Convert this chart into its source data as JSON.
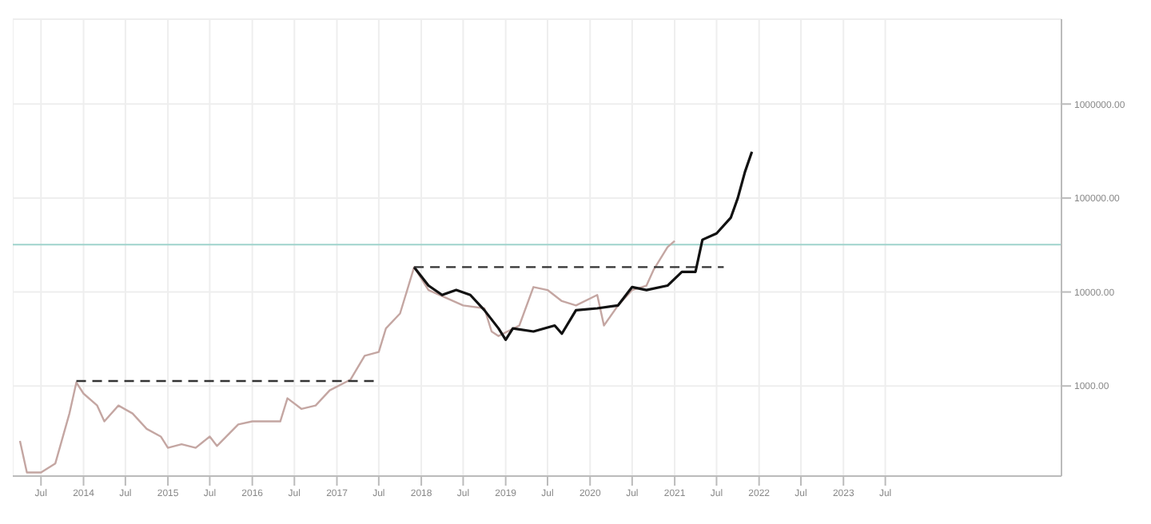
{
  "chart_data": {
    "type": "line",
    "log": true,
    "grid": true,
    "legend": false,
    "marker": "none",
    "xlim": [
      "2013-03",
      "2025-08"
    ],
    "xticks": [
      {
        "value": "2013-07",
        "label": "Jul"
      },
      {
        "value": "2014-01",
        "label": "2014"
      },
      {
        "value": "2014-07",
        "label": "Jul"
      },
      {
        "value": "2015-01",
        "label": "2015"
      },
      {
        "value": "2015-07",
        "label": "Jul"
      },
      {
        "value": "2016-01",
        "label": "2016"
      },
      {
        "value": "2016-07",
        "label": "Jul"
      },
      {
        "value": "2017-01",
        "label": "2017"
      },
      {
        "value": "2017-07",
        "label": "Jul"
      },
      {
        "value": "2018-01",
        "label": "2018"
      },
      {
        "value": "2018-07",
        "label": "Jul"
      },
      {
        "value": "2019-01",
        "label": "2019"
      },
      {
        "value": "2019-07",
        "label": "Jul"
      },
      {
        "value": "2020-01",
        "label": "2020"
      },
      {
        "value": "2020-07",
        "label": "Jul"
      },
      {
        "value": "2021-01",
        "label": "2021"
      },
      {
        "value": "2021-07",
        "label": "Jul"
      },
      {
        "value": "2022-01",
        "label": "2022"
      },
      {
        "value": "2022-07",
        "label": "Jul"
      },
      {
        "value": "2023-01",
        "label": "2023"
      },
      {
        "value": "2023-07",
        "label": "Jul"
      }
    ],
    "ylim": [
      110,
      8000000
    ],
    "yticks": [
      {
        "value": 1000,
        "label": "1000.00"
      },
      {
        "value": 10000,
        "label": "10000.00"
      },
      {
        "value": 100000,
        "label": "100000.00"
      },
      {
        "value": 1000000,
        "label": "1000000.00"
      }
    ],
    "ref_lines": [
      {
        "axis": "y",
        "value": 32000,
        "color": "#9fd3cc"
      }
    ],
    "series": [
      {
        "color": "#c4a6a2",
        "line_style": "solid",
        "x": [
          "2013-04",
          "2013-05",
          "2013-07",
          "2013-09",
          "2013-11",
          "2013-12",
          "2014-01",
          "2014-03",
          "2014-04",
          "2014-06",
          "2014-08",
          "2014-10",
          "2014-12",
          "2015-01",
          "2015-03",
          "2015-05",
          "2015-07",
          "2015-08",
          "2015-11",
          "2016-01",
          "2016-05",
          "2016-06",
          "2016-08",
          "2016-10",
          "2016-12",
          "2017-03",
          "2017-05",
          "2017-07",
          "2017-08",
          "2017-10",
          "2017-11",
          "2017-12",
          "2018-02",
          "2018-07",
          "2018-10",
          "2018-11",
          "2018-12",
          "2019-03",
          "2019-05",
          "2019-07",
          "2019-09",
          "2019-11",
          "2020-02",
          "2020-03",
          "2020-05",
          "2020-07",
          "2020-09",
          "2020-10",
          "2020-12",
          "2021-01"
        ],
        "values": [
          260,
          120,
          120,
          150,
          510,
          1090,
          830,
          620,
          420,
          620,
          510,
          350,
          290,
          220,
          240,
          220,
          290,
          230,
          390,
          420,
          420,
          740,
          570,
          620,
          900,
          1170,
          2100,
          2300,
          4100,
          5900,
          10500,
          18400,
          10500,
          7200,
          6700,
          3800,
          3400,
          4400,
          11300,
          10500,
          8000,
          7200,
          9300,
          4400,
          7200,
          10500,
          11700,
          17100,
          30000,
          35000
        ]
      },
      {
        "color": "#111111",
        "line_style": "solid",
        "x": [
          "2017-12",
          "2018-02",
          "2018-04",
          "2018-06",
          "2018-08",
          "2018-10",
          "2018-12",
          "2019-01",
          "2019-02",
          "2019-05",
          "2019-08",
          "2019-09",
          "2019-11",
          "2020-02",
          "2020-05",
          "2020-07",
          "2020-09",
          "2020-12",
          "2021-02",
          "2021-04",
          "2021-05",
          "2021-07",
          "2021-09",
          "2021-10",
          "2021-11",
          "2021-12"
        ],
        "values": [
          18400,
          11700,
          9300,
          10500,
          9300,
          6400,
          4100,
          3100,
          4100,
          3800,
          4400,
          3600,
          6400,
          6700,
          7200,
          11300,
          10500,
          11700,
          16400,
          16400,
          36000,
          42000,
          62000,
          100000,
          190000,
          310000
        ]
      },
      {
        "color": "#333333",
        "line_style": "dashed",
        "x": [
          "2013-12",
          "2017-07"
        ],
        "values": [
          1130,
          1130
        ]
      },
      {
        "color": "#333333",
        "line_style": "dashed",
        "x": [
          "2017-12",
          "2021-08"
        ],
        "values": [
          18400,
          18400
        ]
      }
    ]
  }
}
